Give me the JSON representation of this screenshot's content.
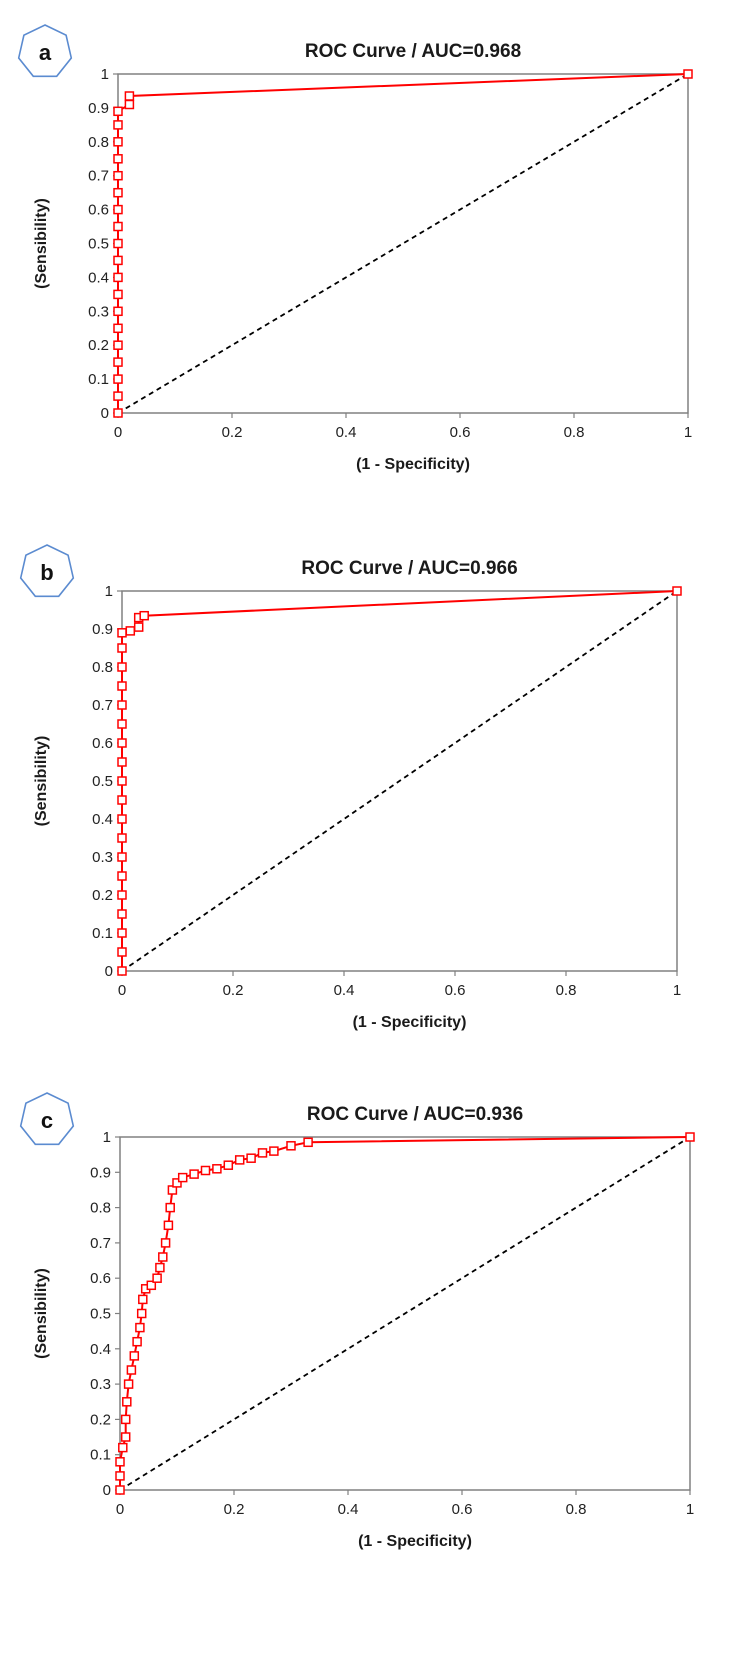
{
  "colors": {
    "roc": "#ff0000",
    "reference": "#000000",
    "frame": "#808080",
    "badge_stroke": "#5b8bd0"
  },
  "chart_data": [
    {
      "type": "line",
      "badge": "a",
      "title": "ROC Curve / AUC=0.968",
      "xlabel": "(1 - Specificity)",
      "ylabel": "(Sensibility)",
      "xlim": [
        0,
        1
      ],
      "ylim": [
        0,
        1
      ],
      "x_ticks": [
        "0",
        "0.2",
        "0.4",
        "0.6",
        "0.8",
        "1"
      ],
      "y_ticks": [
        "0",
        "0.1",
        "0.2",
        "0.3",
        "0.4",
        "0.5",
        "0.6",
        "0.7",
        "0.8",
        "0.9",
        "1"
      ],
      "grid": false,
      "series": [
        {
          "points": [
            [
              0,
              0
            ],
            [
              0,
              0.05
            ],
            [
              0,
              0.1
            ],
            [
              0,
              0.15
            ],
            [
              0,
              0.2
            ],
            [
              0,
              0.25
            ],
            [
              0,
              0.3
            ],
            [
              0,
              0.35
            ],
            [
              0,
              0.4
            ],
            [
              0,
              0.45
            ],
            [
              0,
              0.5
            ],
            [
              0,
              0.55
            ],
            [
              0,
              0.6
            ],
            [
              0,
              0.65
            ],
            [
              0,
              0.7
            ],
            [
              0,
              0.75
            ],
            [
              0,
              0.8
            ],
            [
              0,
              0.85
            ],
            [
              0,
              0.89
            ],
            [
              0.02,
              0.91
            ],
            [
              0.02,
              0.935
            ],
            [
              1,
              1
            ]
          ]
        }
      ],
      "reference_line": [
        [
          0,
          0
        ],
        [
          1,
          1
        ]
      ]
    },
    {
      "type": "line",
      "badge": "b",
      "title": "ROC Curve / AUC=0.966",
      "xlabel": "(1 - Specificity)",
      "ylabel": "(Sensibility)",
      "xlim": [
        0,
        1
      ],
      "ylim": [
        0,
        1
      ],
      "x_ticks": [
        "0",
        "0.2",
        "0.4",
        "0.6",
        "0.8",
        "1"
      ],
      "y_ticks": [
        "0",
        "0.1",
        "0.2",
        "0.3",
        "0.4",
        "0.5",
        "0.6",
        "0.7",
        "0.8",
        "0.9",
        "1"
      ],
      "grid": false,
      "series": [
        {
          "points": [
            [
              0,
              0
            ],
            [
              0,
              0.05
            ],
            [
              0,
              0.1
            ],
            [
              0,
              0.15
            ],
            [
              0,
              0.2
            ],
            [
              0,
              0.25
            ],
            [
              0,
              0.3
            ],
            [
              0,
              0.35
            ],
            [
              0,
              0.4
            ],
            [
              0,
              0.45
            ],
            [
              0,
              0.5
            ],
            [
              0,
              0.55
            ],
            [
              0,
              0.6
            ],
            [
              0,
              0.65
            ],
            [
              0,
              0.7
            ],
            [
              0,
              0.75
            ],
            [
              0,
              0.8
            ],
            [
              0,
              0.85
            ],
            [
              0,
              0.89
            ],
            [
              0.015,
              0.895
            ],
            [
              0.03,
              0.905
            ],
            [
              0.03,
              0.93
            ],
            [
              0.04,
              0.935
            ],
            [
              1,
              1
            ]
          ]
        }
      ],
      "reference_line": [
        [
          0,
          0
        ],
        [
          1,
          1
        ]
      ]
    },
    {
      "type": "line",
      "badge": "c",
      "title": "ROC Curve / AUC=0.936",
      "xlabel": "(1 - Specificity)",
      "ylabel": "(Sensibility)",
      "xlim": [
        0,
        1
      ],
      "ylim": [
        0,
        1
      ],
      "x_ticks": [
        "0",
        "0.2",
        "0.4",
        "0.6",
        "0.8",
        "1"
      ],
      "y_ticks": [
        "0",
        "0.1",
        "0.2",
        "0.3",
        "0.4",
        "0.5",
        "0.6",
        "0.7",
        "0.8",
        "0.9",
        "1"
      ],
      "grid": false,
      "series": [
        {
          "points": [
            [
              0,
              0
            ],
            [
              0,
              0.04
            ],
            [
              0,
              0.08
            ],
            [
              0.005,
              0.12
            ],
            [
              0.01,
              0.15
            ],
            [
              0.01,
              0.2
            ],
            [
              0.012,
              0.25
            ],
            [
              0.015,
              0.3
            ],
            [
              0.02,
              0.34
            ],
            [
              0.025,
              0.38
            ],
            [
              0.03,
              0.42
            ],
            [
              0.035,
              0.46
            ],
            [
              0.038,
              0.5
            ],
            [
              0.04,
              0.54
            ],
            [
              0.045,
              0.57
            ],
            [
              0.055,
              0.58
            ],
            [
              0.065,
              0.6
            ],
            [
              0.07,
              0.63
            ],
            [
              0.075,
              0.66
            ],
            [
              0.08,
              0.7
            ],
            [
              0.085,
              0.75
            ],
            [
              0.088,
              0.8
            ],
            [
              0.092,
              0.85
            ],
            [
              0.1,
              0.87
            ],
            [
              0.11,
              0.885
            ],
            [
              0.13,
              0.895
            ],
            [
              0.15,
              0.905
            ],
            [
              0.17,
              0.91
            ],
            [
              0.19,
              0.92
            ],
            [
              0.21,
              0.935
            ],
            [
              0.23,
              0.94
            ],
            [
              0.25,
              0.955
            ],
            [
              0.27,
              0.96
            ],
            [
              0.3,
              0.975
            ],
            [
              0.33,
              0.985
            ],
            [
              1,
              1
            ]
          ]
        }
      ],
      "reference_line": [
        [
          0,
          0
        ],
        [
          1,
          1
        ]
      ]
    }
  ]
}
